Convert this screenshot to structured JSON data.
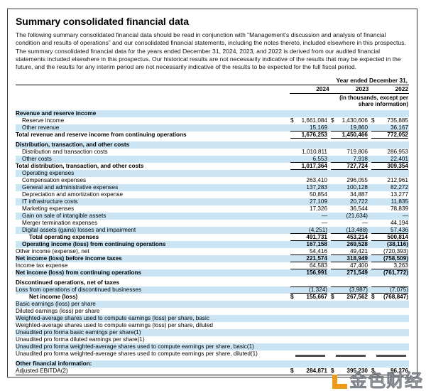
{
  "title": "Summary consolidated financial data",
  "intro": "The following summary consolidated financial data should be read in conjunction with “Management’s discussion and analysis of financial condition and results of operations” and our consolidated financial statements, including the notes thereto, included elsewhere in this prospectus. The summary consolidated financial data for the years ended December 31, 2024, 2023, and 2022 is derived from our audited financial statements included elsewhere in this prospectus. Our historical results are not necessarily indicative of the results that may be expected in the future, and the results for any interim period are not necessarily indicative of the results to be expected for the full fiscal period.",
  "table": {
    "period_label": "Year ended December 31,",
    "years": [
      "2024",
      "2023",
      "2022"
    ],
    "units_note": "(in thousands, except per share information)",
    "rows": [
      {
        "label": "Revenue and reserve income",
        "bold": true
      },
      {
        "label": "Reserve income",
        "indent": 1,
        "vals": [
          "$1,661,084",
          "$ 1,430,606",
          "$ 735,885"
        ]
      },
      {
        "label": "Other revenue",
        "indent": 1,
        "vals": [
          "15,169",
          "19,860",
          "36,167"
        ],
        "ub": true
      },
      {
        "label": "Total revenue and reserve income from continuing operations",
        "bold": true,
        "vals": [
          "1,676,253",
          "1,450,466",
          "772,052"
        ],
        "ub": true
      },
      {
        "label": "Distribution, transaction, and other costs",
        "bold": true,
        "gap": true
      },
      {
        "label": "Distribution and transaction costs",
        "indent": 1,
        "vals": [
          "1,010,811",
          "719,806",
          "286,953"
        ]
      },
      {
        "label": "Other costs",
        "indent": 1,
        "vals": [
          "6,553",
          "7,918",
          "22,401"
        ],
        "ub": true
      },
      {
        "label": "Total distribution, transaction, and other costs",
        "bold": true,
        "vals": [
          "1,017,364",
          "727,724",
          "309,354"
        ],
        "ub": true
      },
      {
        "label": "Operating expenses",
        "indent": 1
      },
      {
        "label": "Compensation expenses",
        "indent": 1,
        "vals": [
          "263,410",
          "296,055",
          "212,961"
        ]
      },
      {
        "label": "General and administrative expenses",
        "indent": 1,
        "vals": [
          "137,283",
          "100,128",
          "82,272"
        ]
      },
      {
        "label": "Depreciation and amortization expense",
        "indent": 1,
        "vals": [
          "50,854",
          "34,887",
          "13,277"
        ]
      },
      {
        "label": "IT infrastructure costs",
        "indent": 1,
        "vals": [
          "27,109",
          "20,722",
          "11,835"
        ]
      },
      {
        "label": "Marketing expenses",
        "indent": 1,
        "vals": [
          "17,326",
          "36,544",
          "78,839"
        ]
      },
      {
        "label": "Gain on sale of intangible assets",
        "indent": 1,
        "vals": [
          "—",
          "(21,634)",
          "—"
        ]
      },
      {
        "label": "Merger termination expenses",
        "indent": 1,
        "vals": [
          "—",
          "—",
          "44,194"
        ]
      },
      {
        "label": "Digital assets (gains) losses and impairment",
        "indent": 1,
        "vals": [
          "(4,251)",
          "(13,488)",
          "57,436"
        ],
        "ub": true
      },
      {
        "label": "Total operating expenses",
        "indent": 2,
        "bold": true,
        "vals": [
          "491,731",
          "453,214",
          "500,814"
        ],
        "ub": true
      },
      {
        "label": "Operating income (loss) from continuing operations",
        "indent": 1,
        "bold": true,
        "vals": [
          "167,158",
          "269,528",
          "(38,116)"
        ]
      },
      {
        "label": "Other income (expense), net",
        "vals": [
          "54,416",
          "49,421",
          "(720,393)"
        ],
        "ub": true
      },
      {
        "label": "Net income (loss) before income taxes",
        "bold": true,
        "vals": [
          "221,574",
          "318,949",
          "(758,509)"
        ],
        "ub": true
      },
      {
        "label": "Income tax expense",
        "vals": [
          "64,583",
          "47,400",
          "3,263"
        ],
        "ub": true
      },
      {
        "label": "Net income (loss) from continuing operations",
        "bold": true,
        "vals": [
          "156,991",
          "271,549",
          "(761,772)"
        ]
      },
      {
        "label": "Discontinued operations, net of taxes",
        "bold": true,
        "gap": true
      },
      {
        "label": "Loss from operations of discontinued businesses",
        "vals": [
          "(1,324)",
          "(3,987)",
          "(7,075)"
        ],
        "ut": true,
        "ub": true
      },
      {
        "label": "Net income (loss)",
        "indent": 2,
        "bold": true,
        "vals": [
          "$ 155,667",
          "$ 267,562",
          "$ (768,847)"
        ]
      },
      {
        "label": "Basic earnings (loss) per share"
      },
      {
        "label": "Diluted earnings (loss) per share"
      },
      {
        "label": "Weighted-average shares used to compute earnings (loss) per share, basic"
      },
      {
        "label": "Weighted-average shares used to compute earnings (loss) per share, diluted"
      },
      {
        "label": "Unaudited pro forma basic earnings per share(1)"
      },
      {
        "label": "Unaudited pro forma diluted earnings per share(1)"
      },
      {
        "label": "Unaudited pro forma weighted-average shares used to compute earnings per share, basic(1)"
      },
      {
        "label": "Unaudited pro forma weighted-average shares used to compute earnings per share, diluted(1)",
        "bars": true
      },
      {
        "label": "Other financial information:",
        "bold": true,
        "gap": true
      },
      {
        "label": "Adjusted EBITDA(2)",
        "vals": [
          "$ 284,871",
          "$ 395,230",
          "$ 96,276"
        ],
        "bv": true,
        "rule": true
      }
    ]
  },
  "watermark": {
    "text": "金色财经",
    "logo": "jinse-orange-bracket"
  },
  "colors": {
    "row_stripe_blue": "#cbe5f5",
    "rule_black": "#000000",
    "panel_border": "#383838",
    "watermark_orange": "#f09a1c",
    "watermark_gray": "#969ca3"
  }
}
